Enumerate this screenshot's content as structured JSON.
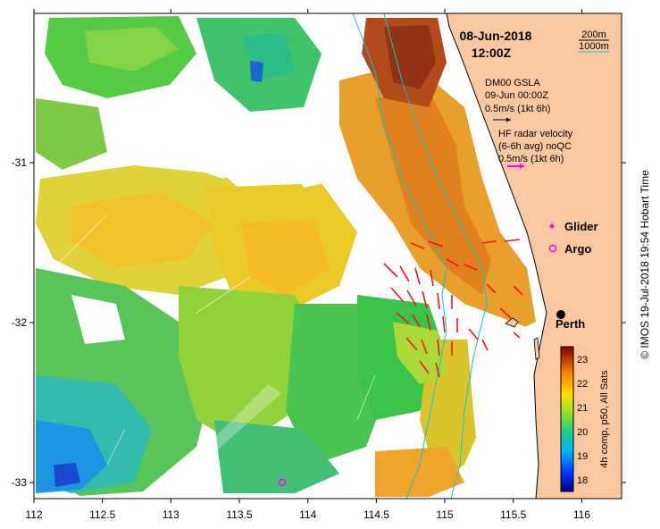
{
  "map": {
    "date_label": "08-Jun-2018",
    "time_label": "12:00Z",
    "x_ticks": [
      "112",
      "112.5",
      "113",
      "113.5",
      "114",
      "114.5",
      "115",
      "115.5",
      "116"
    ],
    "y_ticks": [
      "-31",
      "-32",
      "-33"
    ],
    "contour_legend": {
      "shallow": "200m",
      "deep": "1000m",
      "shallow_color": "#000000",
      "deep_color": "#00cccc"
    },
    "gsla_title": "DM00 GSLA",
    "gsla_time": "09-Jun 00:00Z",
    "gsla_scale": "0.5m/s (1kt 6h)",
    "hf_title": "HF radar velocity",
    "hf_sub": "(6-6h avg) noQC",
    "hf_scale": "0.5m/s (1kt 6h)",
    "glider_label": "Glider",
    "argo_label": "Argo",
    "city_label": "Perth",
    "colorbar": {
      "ticks": [
        "23",
        "22",
        "21",
        "20",
        "19",
        "18"
      ],
      "label": "4h comp, p50, All Sats",
      "range": [
        17.5,
        23.5
      ]
    },
    "credit": "© IMOS 19-Jul-2018 19:54 Hobart Time",
    "colors": {
      "land": "#fac8a0",
      "arrow_red": "#ff1010",
      "marker_magenta": "#ff00ff",
      "isobath_cyan": "#00cccc"
    }
  }
}
